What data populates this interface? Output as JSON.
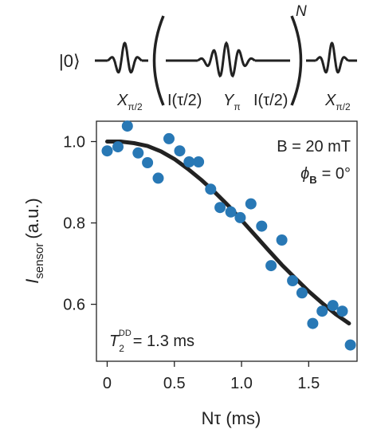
{
  "sequence": {
    "initial_state": "|0⟩",
    "repeat": "N",
    "pulses": [
      {
        "main": "X",
        "sub": "π/2"
      },
      {
        "main": "I(τ/2)",
        "sub": ""
      },
      {
        "main": "Y",
        "sub": "π"
      },
      {
        "main": "I(τ/2)",
        "sub": ""
      },
      {
        "main": "X",
        "sub": "π/2"
      }
    ]
  },
  "chart_data": {
    "type": "scatter",
    "title": "",
    "xlabel": "Nτ (ms)",
    "ylabel_main": "I",
    "ylabel_sub": "sensor",
    "ylabel_unit": "(a.u.)",
    "xlim": [
      -0.08,
      1.86
    ],
    "ylim": [
      0.46,
      1.05
    ],
    "xticks": [
      0,
      0.5,
      1.0,
      1.5
    ],
    "xtick_labels": [
      "0",
      "0.5",
      "1.0",
      "1.5"
    ],
    "yticks": [
      0.6,
      0.8,
      1.0
    ],
    "ytick_labels": [
      "0.6",
      "0.8",
      "1.0"
    ],
    "grid": false,
    "colors": {
      "points": "#2878b5",
      "fit": "#222222"
    },
    "series": [
      {
        "kind": "points",
        "x": [
          0.0,
          0.08,
          0.15,
          0.23,
          0.3,
          0.38,
          0.46,
          0.54,
          0.61,
          0.68,
          0.77,
          0.84,
          0.92,
          0.99,
          1.07,
          1.15,
          1.22,
          1.3,
          1.38,
          1.45,
          1.53,
          1.6,
          1.68,
          1.75,
          1.81
        ],
        "y": [
          0.977,
          0.987,
          1.038,
          0.972,
          0.948,
          0.91,
          1.007,
          0.977,
          0.95,
          0.95,
          0.883,
          0.838,
          0.827,
          0.813,
          0.847,
          0.792,
          0.695,
          0.758,
          0.658,
          0.628,
          0.553,
          0.583,
          0.597,
          0.583,
          0.5
        ]
      },
      {
        "kind": "fit",
        "function": "gaussian_decay",
        "x": [
          0.0,
          0.1,
          0.2,
          0.3,
          0.4,
          0.5,
          0.6,
          0.7,
          0.8,
          0.9,
          1.0,
          1.1,
          1.2,
          1.3,
          1.4,
          1.5,
          1.6,
          1.7,
          1.8
        ],
        "y": [
          1.0,
          1.0,
          0.996,
          0.989,
          0.976,
          0.957,
          0.933,
          0.906,
          0.876,
          0.843,
          0.807,
          0.77,
          0.733,
          0.697,
          0.664,
          0.632,
          0.603,
          0.576,
          0.553
        ]
      }
    ],
    "annotations": {
      "field": "B = 20 mT",
      "angle_symbol": "ϕ",
      "angle_sub": "B",
      "angle_value": "= 0°",
      "t2_main": "T",
      "t2_sub": "2",
      "t2_sup": "DD",
      "t2_value": "= 1.3 ms"
    }
  }
}
